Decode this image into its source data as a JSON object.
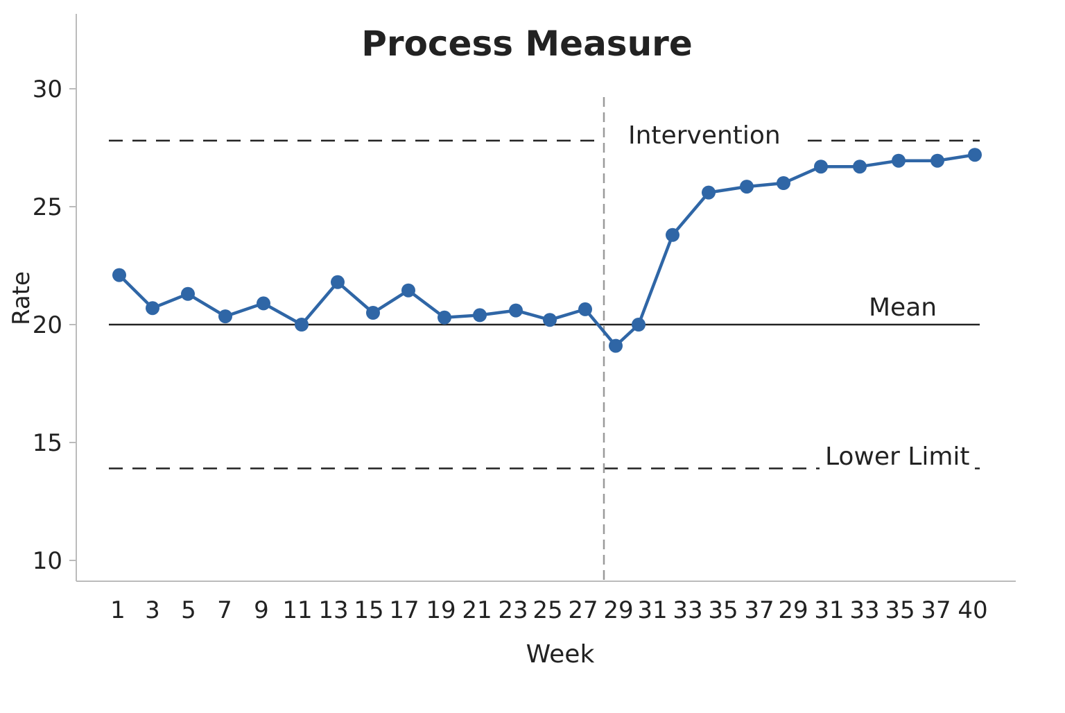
{
  "chart_data": {
    "type": "line",
    "title": "Process Measure",
    "xlabel": "Week",
    "ylabel": "Rate",
    "ylim": [
      10,
      30
    ],
    "y_ticks": [
      10,
      15,
      20,
      25,
      30
    ],
    "categories": [
      "1",
      "3",
      "5",
      "7",
      "9",
      "11",
      "13",
      "15",
      "17",
      "19",
      "21",
      "23",
      "25",
      "27",
      "29",
      "31",
      "33",
      "35",
      "37",
      "29",
      "31",
      "33",
      "35",
      "37",
      "40"
    ],
    "series": [
      {
        "values": [
          22.1,
          20.7,
          21.3,
          20.35,
          20.9,
          20.0,
          21.8,
          20.5,
          21.45,
          20.3,
          20.4,
          20.6,
          20.2,
          20.65,
          19.1,
          20.0,
          23.8,
          25.6,
          25.85,
          26.0,
          26.7,
          26.7,
          26.95,
          26.95,
          27.2
        ]
      }
    ],
    "reference_lines": {
      "mean": {
        "label": "Mean",
        "value": 20
      },
      "upper": {
        "label": "",
        "value": 27.8
      },
      "lower": {
        "label": "Lower Limit",
        "value": 13.9
      },
      "intervention": {
        "label": "Intervention",
        "between": [
          "27",
          "29"
        ]
      }
    },
    "colors": {
      "series": "#2f66a6",
      "lines": "#222222",
      "intervention": "#9a9a9a",
      "axis": "#bbbbbb"
    },
    "grid": false,
    "legend": "none"
  }
}
